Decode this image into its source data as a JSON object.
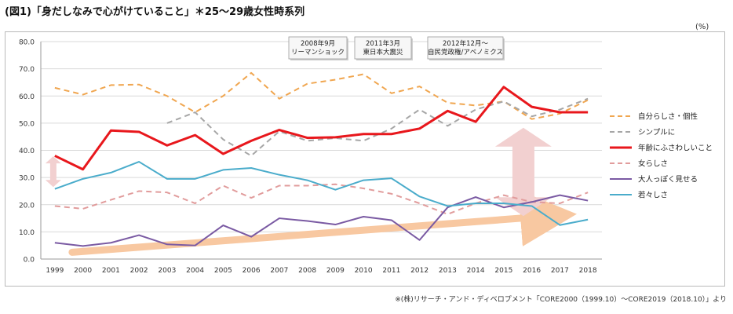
{
  "title": "(図1)「身だしなみで心がけていること」＊25〜29歳女性時系列",
  "unit_label": "(%)",
  "source_note": "※(株)リサーチ・アンド・ディベロプメント「CORE2000（1999.10）〜CORE2019（2018.10）」より",
  "annotations": [
    {
      "lines": [
        "2008年9月",
        "リーマンショック"
      ]
    },
    {
      "lines": [
        "2011年3月",
        "東日本大震災"
      ]
    },
    {
      "lines": [
        "2012年12月〜",
        "自民党政権/アベノミクス"
      ]
    }
  ],
  "colors": {
    "orange": "#f0a650",
    "gray": "#a6a6a6",
    "red": "#e8171c",
    "pink": "#e19c9c",
    "purple": "#7a5aa3",
    "teal": "#4aaccb",
    "arrow_orange": "#f8c8a1",
    "arrow_pink": "#f2d0d0",
    "grid": "#d9d9d9",
    "axis": "#9a9a9a"
  },
  "chart_data": {
    "type": "line",
    "title": "(図1)「身だしなみで心がけていること」＊25〜29歳女性時系列",
    "xlabel": "",
    "ylabel": "(%)",
    "ylim": [
      0,
      80
    ],
    "yticks": [
      "0.0",
      "10.0",
      "20.0",
      "30.0",
      "40.0",
      "50.0",
      "60.0",
      "70.0",
      "80.0"
    ],
    "grid": true,
    "legend_position": "right",
    "categories": [
      "1999",
      "2000",
      "2001",
      "2002",
      "2003",
      "2004",
      "2005",
      "2006",
      "2007",
      "2008",
      "2009",
      "2010",
      "2011",
      "2012",
      "2013",
      "2014",
      "2015",
      "2016",
      "2017",
      "2018"
    ],
    "series": [
      {
        "name": "自分らしさ・個性",
        "color": "#f0a650",
        "dash": "dashed",
        "width": 2,
        "values": [
          63.0,
          60.5,
          64.0,
          64.2,
          60.0,
          54.0,
          60.0,
          68.5,
          59.0,
          64.5,
          66.0,
          68.0,
          61.0,
          63.5,
          57.5,
          56.5,
          58.0,
          51.5,
          53.5,
          58.5
        ]
      },
      {
        "name": "シンプルに",
        "color": "#a6a6a6",
        "dash": "dashed",
        "width": 2,
        "values": [
          null,
          null,
          null,
          null,
          50.0,
          54.0,
          44.0,
          38.0,
          47.0,
          43.5,
          44.5,
          43.5,
          48.0,
          55.0,
          49.0,
          55.0,
          58.0,
          52.5,
          55.0,
          59.0
        ]
      },
      {
        "name": "年齢にふさわしいこと",
        "color": "#e8171c",
        "dash": "solid",
        "width": 3,
        "values": [
          38.0,
          33.0,
          47.3,
          46.8,
          41.8,
          45.6,
          38.7,
          43.5,
          47.5,
          44.6,
          44.8,
          46.0,
          46.0,
          48.0,
          54.5,
          50.5,
          63.3,
          56.0,
          54.0,
          54.0
        ]
      },
      {
        "name": "女らしさ",
        "color": "#e19c9c",
        "dash": "dashed",
        "width": 2,
        "values": [
          19.5,
          18.5,
          21.8,
          25.0,
          24.5,
          20.5,
          27.0,
          22.5,
          27.0,
          27.0,
          27.5,
          26.0,
          24.0,
          20.5,
          16.5,
          20.5,
          23.5,
          21.0,
          20.5,
          24.5
        ]
      },
      {
        "name": "大人っぽく見せる",
        "color": "#7a5aa3",
        "dash": "solid",
        "width": 2,
        "values": [
          6.0,
          4.8,
          6.0,
          8.8,
          5.4,
          5.0,
          12.4,
          8.2,
          15.0,
          14.0,
          12.7,
          15.6,
          14.3,
          7.0,
          19.0,
          22.8,
          19.0,
          21.0,
          23.5,
          21.5
        ]
      },
      {
        "name": "若々しさ",
        "color": "#4aaccb",
        "dash": "solid",
        "width": 2,
        "values": [
          25.8,
          29.5,
          31.8,
          35.8,
          29.5,
          29.5,
          32.8,
          33.5,
          31.0,
          29.0,
          25.5,
          29.0,
          29.7,
          23.0,
          19.5,
          20.5,
          20.5,
          19.5,
          12.5,
          14.5
        ]
      }
    ]
  }
}
